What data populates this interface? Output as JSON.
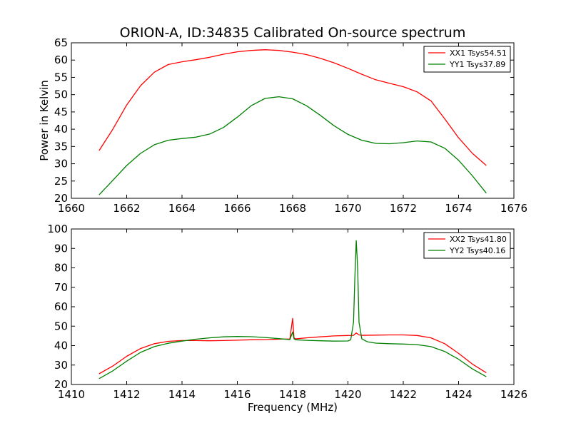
{
  "chart_data": [
    {
      "type": "line",
      "title": "ORION-A, ID:34835 Calibrated On-source spectrum",
      "xlabel": "",
      "ylabel": "Power in Kelvin",
      "xlim": [
        1660,
        1676
      ],
      "ylim": [
        20,
        65
      ],
      "xticks": [
        1660,
        1662,
        1664,
        1666,
        1668,
        1670,
        1672,
        1674,
        1676
      ],
      "yticks": [
        20,
        25,
        30,
        35,
        40,
        45,
        50,
        55,
        60,
        65
      ],
      "legend_position": "top-right",
      "series": [
        {
          "name": "XX1 Tsys54.51",
          "color": "#ff0000",
          "x": [
            1661.0,
            1661.5,
            1662.0,
            1662.5,
            1663.0,
            1663.5,
            1664.0,
            1664.5,
            1665.0,
            1665.5,
            1666.0,
            1666.5,
            1667.0,
            1667.5,
            1668.0,
            1668.5,
            1669.0,
            1669.5,
            1670.0,
            1670.5,
            1671.0,
            1671.5,
            1672.0,
            1672.5,
            1673.0,
            1673.5,
            1674.0,
            1674.5,
            1675.0
          ],
          "y": [
            33.8,
            40.0,
            47.0,
            52.6,
            56.5,
            58.7,
            59.5,
            60.1,
            60.8,
            61.7,
            62.4,
            62.8,
            63.0,
            62.8,
            62.3,
            61.6,
            60.5,
            59.2,
            57.6,
            55.9,
            54.3,
            53.3,
            52.3,
            50.8,
            48.2,
            43.0,
            37.5,
            33.0,
            29.5
          ]
        },
        {
          "name": "YY1 Tsys37.89",
          "color": "#008000",
          "x": [
            1661.0,
            1661.5,
            1662.0,
            1662.5,
            1663.0,
            1663.5,
            1664.0,
            1664.5,
            1665.0,
            1665.5,
            1666.0,
            1666.5,
            1667.0,
            1667.5,
            1668.0,
            1668.5,
            1669.0,
            1669.5,
            1670.0,
            1670.5,
            1671.0,
            1671.5,
            1672.0,
            1672.5,
            1673.0,
            1673.5,
            1674.0,
            1674.5,
            1675.0
          ],
          "y": [
            21.0,
            25.2,
            29.5,
            33.0,
            35.5,
            36.8,
            37.3,
            37.7,
            38.6,
            40.5,
            43.5,
            46.8,
            48.9,
            49.4,
            48.8,
            46.8,
            44.0,
            41.0,
            38.5,
            36.8,
            35.9,
            35.8,
            36.1,
            36.6,
            36.3,
            34.5,
            31.0,
            26.5,
            21.5
          ]
        }
      ]
    },
    {
      "type": "line",
      "title": "",
      "xlabel": "Frequency (MHz)",
      "ylabel": "",
      "xlim": [
        1410,
        1426
      ],
      "ylim": [
        20,
        100
      ],
      "xticks": [
        1410,
        1412,
        1414,
        1416,
        1418,
        1420,
        1422,
        1424,
        1426
      ],
      "yticks": [
        20,
        30,
        40,
        50,
        60,
        70,
        80,
        90,
        100
      ],
      "legend_position": "top-right",
      "series": [
        {
          "name": "XX2 Tsys41.80",
          "color": "#ff0000",
          "x": [
            1411.0,
            1411.5,
            1412.0,
            1412.5,
            1413.0,
            1413.5,
            1414.0,
            1414.5,
            1415.0,
            1415.5,
            1416.0,
            1416.5,
            1417.0,
            1417.5,
            1417.9,
            1418.0,
            1418.05,
            1418.1,
            1418.2,
            1418.5,
            1419.0,
            1419.5,
            1420.0,
            1420.2,
            1420.3,
            1420.4,
            1420.5,
            1421.0,
            1421.5,
            1422.0,
            1422.5,
            1423.0,
            1423.5,
            1424.0,
            1424.5,
            1425.0
          ],
          "y": [
            25.5,
            29.5,
            34.5,
            38.5,
            41.0,
            42.2,
            42.6,
            42.6,
            42.5,
            42.6,
            42.8,
            43.0,
            43.1,
            43.3,
            43.4,
            54.0,
            44.0,
            43.5,
            43.6,
            44.0,
            44.5,
            45.0,
            45.2,
            45.3,
            46.5,
            45.5,
            45.3,
            45.4,
            45.5,
            45.5,
            45.2,
            44.0,
            41.0,
            36.0,
            30.5,
            26.0
          ]
        },
        {
          "name": "YY2 Tsys40.16",
          "color": "#008000",
          "x": [
            1411.0,
            1411.5,
            1412.0,
            1412.5,
            1413.0,
            1413.5,
            1414.0,
            1414.5,
            1415.0,
            1415.5,
            1416.0,
            1416.5,
            1417.0,
            1417.5,
            1417.9,
            1418.0,
            1418.05,
            1418.1,
            1418.5,
            1419.0,
            1419.5,
            1420.0,
            1420.1,
            1420.2,
            1420.25,
            1420.3,
            1420.35,
            1420.4,
            1420.5,
            1420.7,
            1421.0,
            1421.5,
            1422.0,
            1422.5,
            1423.0,
            1423.5,
            1424.0,
            1424.5,
            1425.0
          ],
          "y": [
            23.0,
            27.0,
            32.0,
            36.5,
            39.5,
            41.2,
            42.3,
            43.3,
            44.0,
            44.5,
            44.7,
            44.6,
            44.2,
            43.6,
            43.1,
            47.0,
            43.5,
            43.0,
            42.7,
            42.5,
            42.3,
            42.4,
            43.0,
            52.0,
            75.0,
            94.0,
            80.0,
            52.0,
            43.5,
            42.0,
            41.3,
            41.0,
            40.8,
            40.5,
            39.5,
            37.0,
            33.0,
            28.0,
            24.0
          ]
        }
      ]
    }
  ]
}
